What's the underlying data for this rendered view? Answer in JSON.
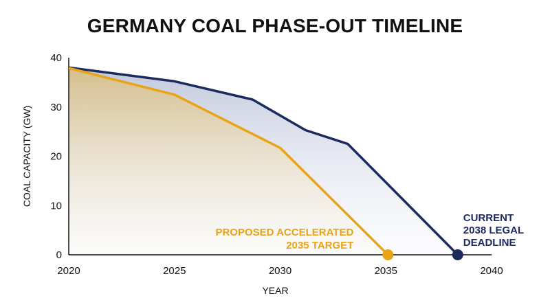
{
  "chart_data": {
    "type": "area",
    "title": "GERMANY COAL PHASE-OUT TIMELINE",
    "xlabel": "YEAR",
    "ylabel": "COAL CAPACITY (GW)",
    "xlim": [
      2020,
      2040
    ],
    "ylim": [
      0,
      40
    ],
    "xticks": [
      2020,
      2025,
      2030,
      2035,
      2040
    ],
    "yticks": [
      0,
      10,
      20,
      30,
      40
    ],
    "grid": false,
    "series": [
      {
        "key": "current",
        "color": "#1c2a5e",
        "x": [
          2020,
          2025,
          2028.7,
          2031.2,
          2033.2,
          2038.4
        ],
        "y": [
          38,
          35.2,
          31.5,
          25.3,
          22.5,
          0
        ]
      },
      {
        "key": "proposed",
        "color": "#e8a317",
        "x": [
          2020,
          2025,
          2030,
          2035.1
        ],
        "y": [
          37.9,
          32.5,
          21.7,
          0
        ]
      }
    ],
    "annotations": [
      {
        "series": "proposed",
        "lines": [
          "PROPOSED ACCELERATED",
          "2035 TARGET"
        ],
        "color": "#e8a317"
      },
      {
        "series": "current",
        "lines": [
          "CURRENT",
          "2038 LEGAL",
          "DEADLINE"
        ],
        "color": "#1c2a5e"
      }
    ]
  }
}
